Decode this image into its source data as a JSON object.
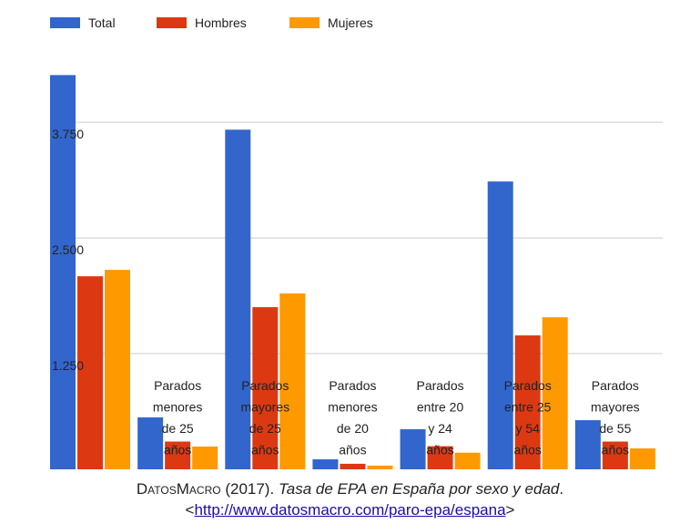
{
  "chart_data": {
    "type": "bar",
    "categories": [
      null,
      "Parados menores de 25 años",
      "Parados mayores de 25 años",
      "Parados menores de 20 años",
      "Parados entre 20 y 24 años",
      "Parados entre 25 y 54 años",
      "Parados mayores de 55 años"
    ],
    "series": [
      {
        "name": "Total",
        "color": "#3366cc",
        "values": [
          4260,
          561,
          3670,
          108,
          433,
          3110,
          531
        ]
      },
      {
        "name": "Hombres",
        "color": "#dc3912",
        "values": [
          2086,
          300,
          1752,
          60,
          250,
          1447,
          300
        ]
      },
      {
        "name": "Mujeres",
        "color": "#ff9900",
        "values": [
          2155,
          246,
          1900,
          40,
          180,
          1643,
          226
        ]
      }
    ],
    "ylim": [
      0,
      4500
    ],
    "yticks": [
      {
        "value": 1250,
        "label": "1.250"
      },
      {
        "value": 2500,
        "label": "2.500"
      },
      {
        "value": 3750,
        "label": "3.750"
      }
    ],
    "grid": true,
    "legend": "top"
  },
  "caption": {
    "author": "DatosMacro",
    "year": "(2017).",
    "title": "Tasa de EPA en España por sexo y edad",
    "period": ".",
    "open": "<",
    "url": "http://www.datosmacro.com/paro-epa/espana",
    "close": ">"
  }
}
